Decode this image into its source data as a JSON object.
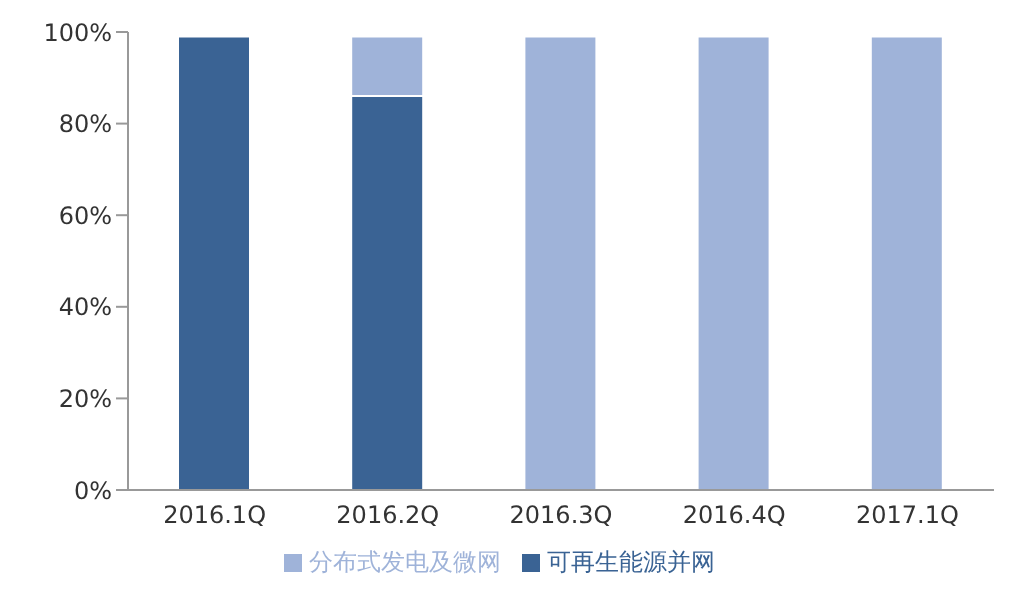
{
  "chart_data": {
    "type": "bar",
    "stacked": true,
    "categories": [
      "2016.1Q",
      "2016.2Q",
      "2016.3Q",
      "2016.4Q",
      "2017.1Q"
    ],
    "series": [
      {
        "name": "可再生能源并网",
        "color": "#3a6394",
        "values": [
          99,
          86,
          null,
          null,
          null
        ]
      },
      {
        "name": "分布式发电及微网",
        "color": "#9fb3d9",
        "values": [
          null,
          13,
          99,
          99,
          99
        ]
      }
    ],
    "ylim": [
      0,
      100
    ],
    "yticks": [
      {
        "value": 0,
        "label": "0%"
      },
      {
        "value": 20,
        "label": "20%"
      },
      {
        "value": 40,
        "label": "40%"
      },
      {
        "value": 60,
        "label": "60%"
      },
      {
        "value": 80,
        "label": "80%"
      },
      {
        "value": 100,
        "label": "100%"
      }
    ],
    "grid": false,
    "legend": "bottom"
  }
}
